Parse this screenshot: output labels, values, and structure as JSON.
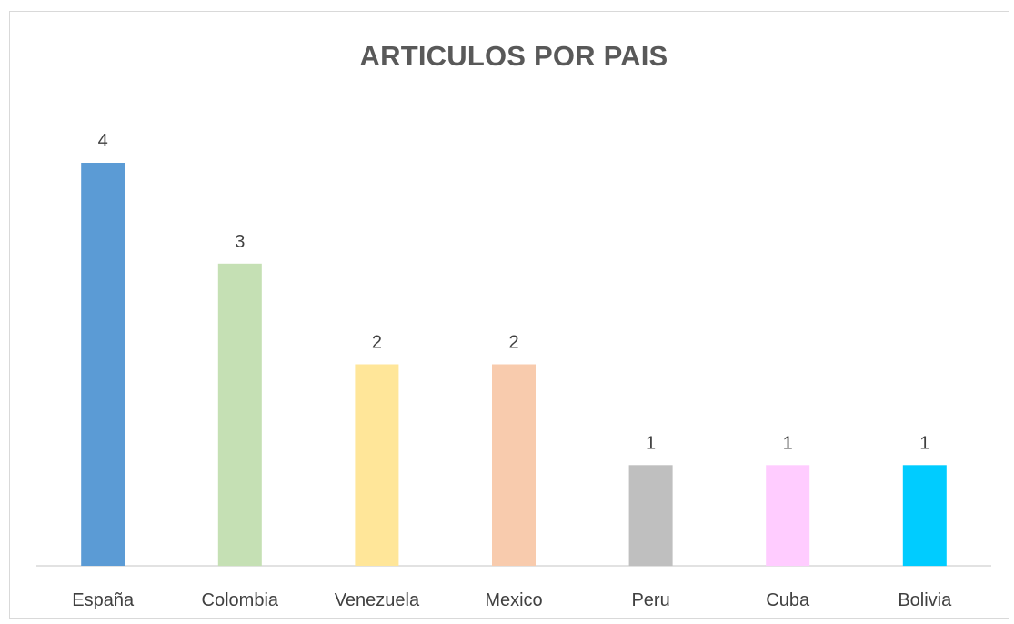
{
  "chart_data": {
    "type": "bar",
    "title": "ARTICULOS POR PAIS",
    "categories": [
      "España",
      "Colombia",
      "Venezuela",
      "Mexico",
      "Peru",
      "Cuba",
      "Bolivia"
    ],
    "values": [
      4,
      3,
      2,
      2,
      1,
      1,
      1
    ],
    "colors": [
      "#5b9bd5",
      "#c5e0b4",
      "#ffe699",
      "#f8cbad",
      "#bfbfbf",
      "#ffccff",
      "#00ccff"
    ],
    "data_labels": true,
    "grid": false,
    "legend": "none",
    "ylim": [
      0,
      4
    ]
  }
}
